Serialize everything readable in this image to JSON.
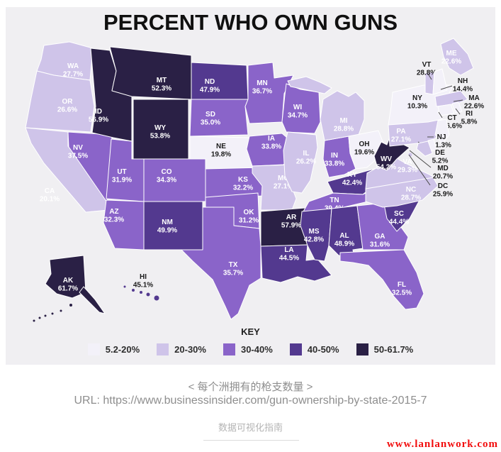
{
  "title": "PERCENT WHO OWN GUNS",
  "key": {
    "heading": "KEY",
    "buckets": [
      {
        "label": "5.2-20%",
        "color": "#f3f1f9"
      },
      {
        "label": "20-30%",
        "color": "#cfc4e9"
      },
      {
        "label": "30-40%",
        "color": "#8a64c9"
      },
      {
        "label": "40-50%",
        "color": "#53398f"
      },
      {
        "label": "50-61.7%",
        "color": "#2a2045"
      }
    ]
  },
  "chart_data": {
    "type": "heatmap",
    "subtype": "us-choropleth-map",
    "title": "PERCENT WHO OWN GUNS",
    "unit": "%",
    "legend_position": "bottom",
    "value_range": [
      5.2,
      61.7
    ],
    "bucket_thresholds": [
      20,
      30,
      40,
      50
    ],
    "states": [
      {
        "abbr": "WA",
        "value": 27.7
      },
      {
        "abbr": "OR",
        "value": 26.6
      },
      {
        "abbr": "CA",
        "value": 20.1
      },
      {
        "abbr": "NV",
        "value": 37.5
      },
      {
        "abbr": "ID",
        "value": 56.9
      },
      {
        "abbr": "MT",
        "value": 52.3
      },
      {
        "abbr": "WY",
        "value": 53.8
      },
      {
        "abbr": "UT",
        "value": 31.9
      },
      {
        "abbr": "CO",
        "value": 34.3
      },
      {
        "abbr": "AZ",
        "value": 32.3
      },
      {
        "abbr": "NM",
        "value": 49.9
      },
      {
        "abbr": "ND",
        "value": 47.9
      },
      {
        "abbr": "SD",
        "value": 35.0
      },
      {
        "abbr": "NE",
        "value": 19.8
      },
      {
        "abbr": "KS",
        "value": 32.2
      },
      {
        "abbr": "OK",
        "value": 31.2
      },
      {
        "abbr": "TX",
        "value": 35.7
      },
      {
        "abbr": "MN",
        "value": 36.7
      },
      {
        "abbr": "IA",
        "value": 33.8
      },
      {
        "abbr": "MO",
        "value": 27.1
      },
      {
        "abbr": "AR",
        "value": 57.9
      },
      {
        "abbr": "LA",
        "value": 44.5
      },
      {
        "abbr": "WI",
        "value": 34.7
      },
      {
        "abbr": "IL",
        "value": 26.2
      },
      {
        "abbr": "IN",
        "value": 33.8
      },
      {
        "abbr": "MI",
        "value": 28.8
      },
      {
        "abbr": "OH",
        "value": 19.6
      },
      {
        "abbr": "KY",
        "value": 42.4
      },
      {
        "abbr": "TN",
        "value": 39.4
      },
      {
        "abbr": "MS",
        "value": 42.8
      },
      {
        "abbr": "AL",
        "value": 48.9
      },
      {
        "abbr": "GA",
        "value": 31.6
      },
      {
        "abbr": "FL",
        "value": 32.5
      },
      {
        "abbr": "SC",
        "value": 44.4
      },
      {
        "abbr": "NC",
        "value": 28.7
      },
      {
        "abbr": "VA",
        "value": 29.3
      },
      {
        "abbr": "WV",
        "value": 54.2
      },
      {
        "abbr": "PA",
        "value": 27.1
      },
      {
        "abbr": "NY",
        "value": 10.3
      },
      {
        "abbr": "VT",
        "value": 28.8
      },
      {
        "abbr": "NH",
        "value": 14.4
      },
      {
        "abbr": "ME",
        "value": 22.6
      },
      {
        "abbr": "MA",
        "value": 22.6
      },
      {
        "abbr": "RI",
        "value": 5.8
      },
      {
        "abbr": "CT",
        "value": 16.6
      },
      {
        "abbr": "NJ",
        "value": 11.3
      },
      {
        "abbr": "DE",
        "value": 5.2
      },
      {
        "abbr": "MD",
        "value": 20.7
      },
      {
        "abbr": "DC",
        "value": 25.9
      },
      {
        "abbr": "AK",
        "value": 61.7
      },
      {
        "abbr": "HI",
        "value": 45.1
      }
    ]
  },
  "footer": {
    "caption": "< 每个洲拥有的枪支数量 >",
    "url": "URL: https://www.businessinsider.com/gun-ownership-by-state-2015-7",
    "source": "数据可视化指南",
    "watermark": "www.lanlanwork.com"
  },
  "colors": {
    "card_bg": "#f0eff2",
    "state_border": "#ffffff",
    "label_light": "#ffffff",
    "label_dark": "#1b1b1b",
    "leader_line": "#4a4a4a",
    "watermark_red": "#f20d0d"
  }
}
